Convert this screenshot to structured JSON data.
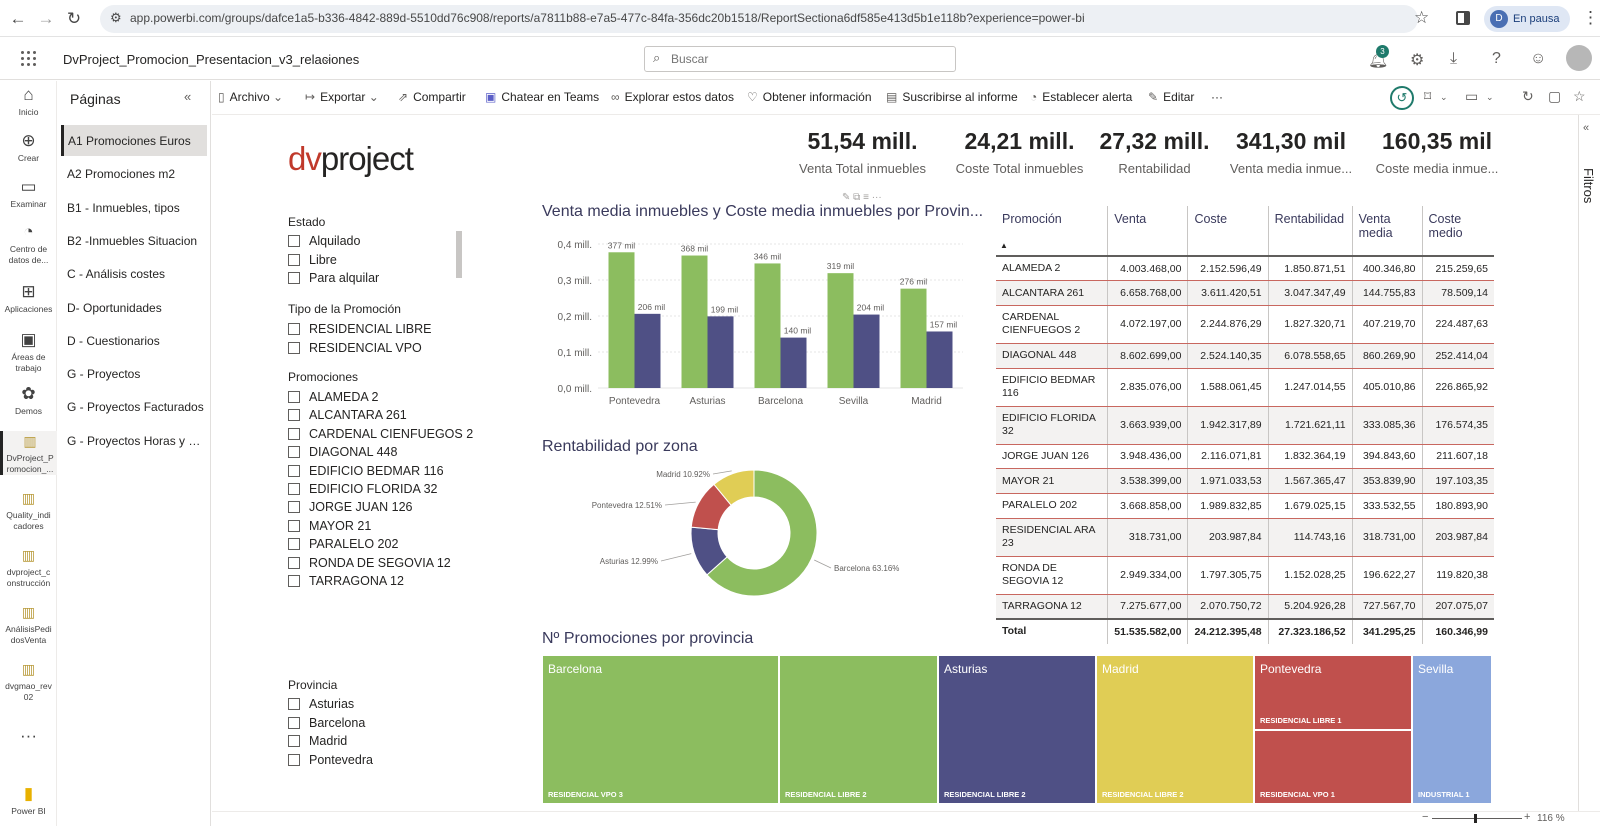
{
  "browser": {
    "url": "app.powerbi.com/groups/dafce1a5-b336-4842-889d-5510dd76c908/reports/a7811b88-e7a5-477c-84fa-356dc20b1518/ReportSectiona6df585e413d5b1e118b?experience=power-bi",
    "profile_initial": "D",
    "profile_status": "En pausa"
  },
  "header": {
    "report_title": "DvProject_Promocion_Presentacion_v3_relaciones",
    "search_placeholder": "Buscar",
    "notification_count": "3"
  },
  "rail": [
    {
      "icon": "home-icon",
      "glyph": "⌂",
      "label": "Inicio"
    },
    {
      "icon": "plus-circle-icon",
      "glyph": "⊕",
      "label": "Crear"
    },
    {
      "icon": "folder-icon",
      "glyph": "▭",
      "label": "Examinar"
    },
    {
      "icon": "data-hub-icon",
      "glyph": "◔",
      "label": "Centro de datos de..."
    },
    {
      "icon": "apps-icon",
      "glyph": "⊞",
      "label": "Aplicaciones"
    },
    {
      "icon": "workspaces-icon",
      "glyph": "▣",
      "label": "Áreas de trabajo"
    },
    {
      "icon": "demos-icon",
      "glyph": "✿",
      "label": "Demos"
    },
    {
      "icon": "report-icon",
      "glyph": "▥",
      "label": "DvProject_P romocion_..."
    },
    {
      "icon": "report-icon",
      "glyph": "▥",
      "label": "Quality_indi cadores"
    },
    {
      "icon": "report-icon",
      "glyph": "▥",
      "label": "dvproject_c onstrucción"
    },
    {
      "icon": "report-icon",
      "glyph": "▥",
      "label": "AnálisisPedi dosVenta"
    },
    {
      "icon": "report-icon",
      "glyph": "▥",
      "label": "dvgmao_rev 02"
    },
    {
      "icon": "more-icon",
      "glyph": "···",
      "label": ""
    },
    {
      "icon": "powerbi-logo-icon",
      "glyph": "▮",
      "label": "Power BI"
    }
  ],
  "pages": {
    "title": "Páginas",
    "items": [
      "A1 Promociones Euros",
      "A2 Promociones m2",
      "B1 - Inmuebles, tipos",
      "B2 -Inmuebles Situacion",
      "C - Análisis costes",
      "D- Oportunidades",
      "D - Cuestionarios",
      "G - Proyectos",
      "G - Proyectos Facturados",
      "G - Proyectos Horas y presupuesto"
    ]
  },
  "toolbar": {
    "archivo": "Archivo",
    "exportar": "Exportar",
    "compartir": "Compartir",
    "teams": "Chatear en Teams",
    "explorar": "Explorar estos datos",
    "info": "Obtener información",
    "suscribirse": "Suscribirse al informe",
    "alerta": "Establecer alerta",
    "editar": "Editar",
    "more": "···"
  },
  "filters": {
    "label": "Filtros"
  },
  "logo": {
    "prefix": "dv",
    "suffix": "project"
  },
  "kpis": [
    {
      "value": "51,54 mill.",
      "label": "Venta Total inmuebles"
    },
    {
      "value": "24,21 mill.",
      "label": "Coste Total inmuebles"
    },
    {
      "value": "27,32 mill.",
      "label": "Rentabilidad"
    },
    {
      "value": "341,30 mil",
      "label": "Venta media inmue..."
    },
    {
      "value": "160,35 mil",
      "label": "Coste media inmue..."
    }
  ],
  "slicers": {
    "estado": {
      "title": "Estado",
      "items": [
        "Alquilado",
        "Libre",
        "Para alquilar"
      ]
    },
    "tipo": {
      "title": "Tipo de la Promoción",
      "items": [
        "RESIDENCIAL LIBRE",
        "RESIDENCIAL VPO"
      ]
    },
    "promociones": {
      "title": "Promociones",
      "items": [
        "ALAMEDA 2",
        "ALCANTARA 261",
        "CARDENAL CIENFUEGOS 2",
        "DIAGONAL 448",
        "EDIFICIO BEDMAR 116",
        "EDIFICIO FLORIDA 32",
        "JORGE JUAN 126",
        "MAYOR 21",
        "PARALELO 202",
        "RONDA DE SEGOVIA 12",
        "TARRAGONA 12"
      ]
    },
    "provincia": {
      "title": "Provincia",
      "items": [
        "Asturias",
        "Barcelona",
        "Madrid",
        "Pontevedra"
      ]
    }
  },
  "bar_chart": {
    "title": "Venta media inmuebles y Coste media inmuebles por Provin...",
    "colors": {
      "venta": "#8cbd5f",
      "coste": "#4f5085"
    }
  },
  "donut_chart": {
    "title": "Rentabilidad por zona",
    "colors": {
      "Barcelona": "#8cbd5f",
      "Asturias": "#4f5085",
      "Pontevedra": "#c0504d",
      "Madrid": "#e0cd55"
    }
  },
  "treemap": {
    "title": "Nº Promociones por provincia",
    "cells": [
      {
        "label": "Barcelona",
        "sub": "RESIDENCIAL VPO 3",
        "color": "#8cbd5f"
      },
      {
        "label": "",
        "sub": "RESIDENCIAL LIBRE 2",
        "color": "#8cbd5f"
      },
      {
        "label": "Asturias",
        "sub": "RESIDENCIAL LIBRE 2",
        "color": "#4f5085"
      },
      {
        "label": "Madrid",
        "sub": "RESIDENCIAL LIBRE 2",
        "color": "#e0cd55"
      },
      {
        "label": "Pontevedra",
        "sub": "RESIDENCIAL LIBRE 1",
        "color": "#c0504d"
      },
      {
        "label": "",
        "sub": "RESIDENCIAL VPO 1",
        "color": "#c0504d"
      },
      {
        "label": "Sevilla",
        "sub": "INDUSTRIAL 1",
        "color": "#8ba7dc"
      }
    ]
  },
  "table": {
    "headers": [
      "Promoción",
      "Venta",
      "Coste",
      "Rentabilidad",
      "Venta media",
      "Coste medio"
    ],
    "rows": [
      [
        "ALAMEDA 2",
        "4.003.468,00",
        "2.152.596,49",
        "1.850.871,51",
        "400.346,80",
        "215.259,65"
      ],
      [
        "ALCANTARA 261",
        "6.658.768,00",
        "3.611.420,51",
        "3.047.347,49",
        "144.755,83",
        "78.509,14"
      ],
      [
        "CARDENAL CIENFUEGOS 2",
        "4.072.197,00",
        "2.244.876,29",
        "1.827.320,71",
        "407.219,70",
        "224.487,63"
      ],
      [
        "DIAGONAL 448",
        "8.602.699,00",
        "2.524.140,35",
        "6.078.558,65",
        "860.269,90",
        "252.414,04"
      ],
      [
        "EDIFICIO BEDMAR 116",
        "2.835.076,00",
        "1.588.061,45",
        "1.247.014,55",
        "405.010,86",
        "226.865,92"
      ],
      [
        "EDIFICIO FLORIDA 32",
        "3.663.939,00",
        "1.942.317,89",
        "1.721.621,11",
        "333.085,36",
        "176.574,35"
      ],
      [
        "JORGE JUAN 126",
        "3.948.436,00",
        "2.116.071,81",
        "1.832.364,19",
        "394.843,60",
        "211.607,18"
      ],
      [
        "MAYOR 21",
        "3.538.399,00",
        "1.971.033,53",
        "1.567.365,47",
        "353.839,90",
        "197.103,35"
      ],
      [
        "PARALELO 202",
        "3.668.858,00",
        "1.989.832,85",
        "1.679.025,15",
        "333.532,55",
        "180.893,90"
      ],
      [
        "RESIDENCIAL ARA 23",
        "318.731,00",
        "203.987,84",
        "114.743,16",
        "318.731,00",
        "203.987,84"
      ],
      [
        "RONDA DE SEGOVIA 12",
        "2.949.334,00",
        "1.797.305,75",
        "1.152.028,25",
        "196.622,27",
        "119.820,38"
      ],
      [
        "TARRAGONA 12",
        "7.275.677,00",
        "2.070.750,72",
        "5.204.926,28",
        "727.567,70",
        "207.075,07"
      ]
    ],
    "total": [
      "Total",
      "51.535.582,00",
      "24.212.395,48",
      "27.323.186,52",
      "341.295,25",
      "160.346,99"
    ]
  },
  "status": {
    "zoom": "116 %"
  },
  "chart_data": [
    {
      "type": "bar",
      "title": "Venta media inmuebles y Coste media inmuebles por Provin...",
      "categories": [
        "Pontevedra",
        "Asturias",
        "Barcelona",
        "Sevilla",
        "Madrid"
      ],
      "series": [
        {
          "name": "Venta media inmuebles",
          "values": [
            377,
            368,
            346,
            319,
            276
          ],
          "labels": [
            "377 mil",
            "368 mil",
            "346 mil",
            "319 mil",
            "276 mil"
          ]
        },
        {
          "name": "Coste media inmuebles",
          "values": [
            206,
            199,
            140,
            204,
            157
          ],
          "labels": [
            "206 mil",
            "199 mil",
            "140 mil",
            "204 mil",
            "157 mil"
          ]
        }
      ],
      "yticks": [
        "0,0 mill.",
        "0,1 mill.",
        "0,2 mill.",
        "0,3 mill.",
        "0,4 mill."
      ],
      "ylim": [
        0,
        400
      ]
    },
    {
      "type": "pie",
      "title": "Rentabilidad por zona",
      "slices": [
        {
          "name": "Barcelona",
          "value": 63.16,
          "label": "Barcelona 63.16%"
        },
        {
          "name": "Asturias",
          "value": 12.99,
          "label": "Asturias 12.99%"
        },
        {
          "name": "Pontevedra",
          "value": 12.51,
          "label": "Pontevedra 12.51%"
        },
        {
          "name": "Madrid",
          "value": 10.92,
          "label": "Madrid 10.92%"
        }
      ]
    }
  ]
}
